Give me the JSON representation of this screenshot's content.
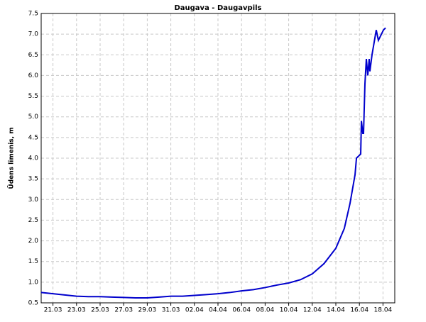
{
  "chart_data": {
    "type": "line",
    "title": "Daugava - Daugavpils",
    "y_label": "Ūdens līmenis, m",
    "grid": true,
    "x": [
      20,
      21,
      22,
      23,
      24,
      25,
      26,
      27,
      28,
      29,
      30,
      31,
      32,
      33,
      34,
      35,
      36,
      37,
      38,
      39,
      40,
      41,
      42,
      43,
      44,
      45,
      45.72,
      46.2,
      46.63,
      46.75,
      47.11,
      47.17,
      47.29,
      47.35,
      47.47,
      47.59,
      47.71,
      47.83,
      47.89,
      48.07,
      48.43,
      48.61,
      49.04,
      49.22
    ],
    "series": [
      {
        "name": "Daugava - Daugavpils",
        "color": "#0000cc",
        "values": [
          0.75,
          0.72,
          0.69,
          0.66,
          0.65,
          0.65,
          0.64,
          0.63,
          0.62,
          0.62,
          0.64,
          0.66,
          0.66,
          0.68,
          0.7,
          0.72,
          0.75,
          0.79,
          0.82,
          0.87,
          0.93,
          0.98,
          1.06,
          1.2,
          1.45,
          1.82,
          2.3,
          2.9,
          3.6,
          4.0,
          4.1,
          4.9,
          4.6,
          4.6,
          5.8,
          6.4,
          6.0,
          6.4,
          6.1,
          6.5,
          7.1,
          6.85,
          7.1,
          7.15
        ]
      }
    ],
    "xlim": [
      20,
      50
    ],
    "xticks": [
      {
        "value": 21,
        "label": "21.03"
      },
      {
        "value": 23,
        "label": "23.03"
      },
      {
        "value": 25,
        "label": "25.03"
      },
      {
        "value": 27,
        "label": "27.03"
      },
      {
        "value": 29,
        "label": "29.03"
      },
      {
        "value": 31,
        "label": "31.03"
      },
      {
        "value": 33,
        "label": "02.04"
      },
      {
        "value": 35,
        "label": "04.04"
      },
      {
        "value": 37,
        "label": "06.04"
      },
      {
        "value": 39,
        "label": "08.04"
      },
      {
        "value": 41,
        "label": "10.04"
      },
      {
        "value": 43,
        "label": "12.04"
      },
      {
        "value": 45,
        "label": "14.04"
      },
      {
        "value": 47,
        "label": "16.04"
      },
      {
        "value": 49,
        "label": "18.04"
      }
    ],
    "ylim": [
      0.5,
      7.5
    ],
    "yticks": [
      0.5,
      {
        "value": 1,
        "label": "1.0"
      },
      1.5,
      {
        "value": 2,
        "label": "2.0"
      },
      2.5,
      {
        "value": 3,
        "label": "3.0"
      },
      3.5,
      {
        "value": 4,
        "label": "4.0"
      },
      4.5,
      {
        "value": 5,
        "label": "5.0"
      },
      5.5,
      {
        "value": 6,
        "label": "6.0"
      },
      6.5,
      {
        "value": 7,
        "label": "7.0"
      },
      7.5
    ]
  }
}
